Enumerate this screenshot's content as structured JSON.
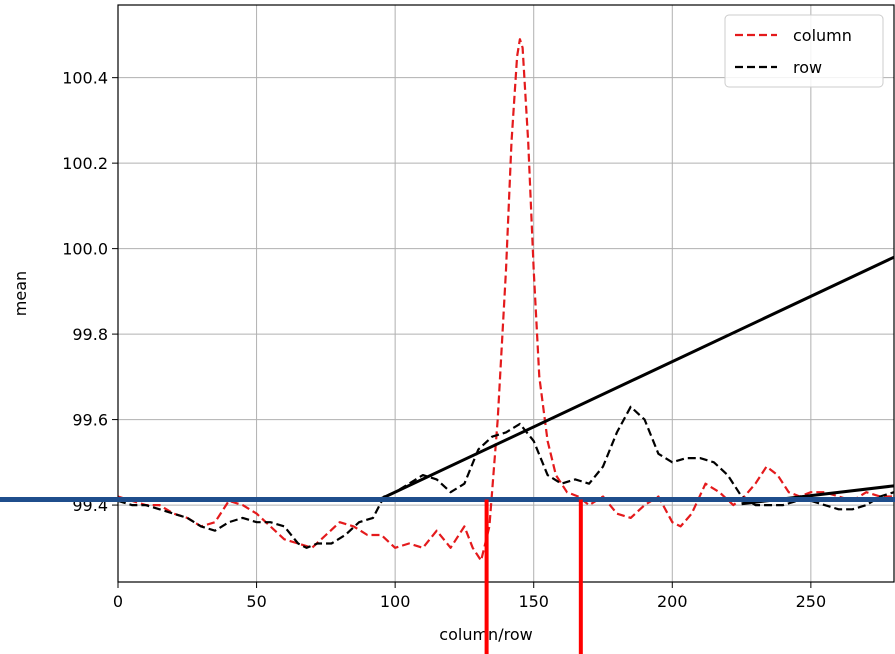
{
  "chart_data": {
    "type": "line",
    "xlabel": "column/row",
    "ylabel": "mean",
    "xlim": [
      0,
      280
    ],
    "ylim": [
      99.22,
      100.57
    ],
    "grid": true,
    "legend_position": "top-right",
    "x_ticks": [
      0,
      50,
      100,
      150,
      200,
      250
    ],
    "y_ticks": [
      99.4,
      99.6,
      99.8,
      100.0,
      100.2,
      100.4
    ],
    "x_tick_labels": [
      "0",
      "50",
      "100",
      "150",
      "200",
      "250"
    ],
    "y_tick_labels": [
      "99.4",
      "99.6",
      "99.8",
      "100.0",
      "100.2",
      "100.4"
    ],
    "series": [
      {
        "name": "column",
        "color": "#e41a1c",
        "style": "dashed",
        "points": [
          [
            0,
            99.42
          ],
          [
            5,
            99.41
          ],
          [
            10,
            99.4
          ],
          [
            15,
            99.4
          ],
          [
            20,
            99.38
          ],
          [
            25,
            99.37
          ],
          [
            30,
            99.35
          ],
          [
            35,
            99.36
          ],
          [
            40,
            99.41
          ],
          [
            45,
            99.4
          ],
          [
            50,
            99.38
          ],
          [
            55,
            99.35
          ],
          [
            60,
            99.32
          ],
          [
            65,
            99.31
          ],
          [
            70,
            99.3
          ],
          [
            75,
            99.33
          ],
          [
            80,
            99.36
          ],
          [
            85,
            99.35
          ],
          [
            90,
            99.33
          ],
          [
            95,
            99.33
          ],
          [
            100,
            99.3
          ],
          [
            105,
            99.31
          ],
          [
            110,
            99.3
          ],
          [
            115,
            99.34
          ],
          [
            120,
            99.3
          ],
          [
            125,
            99.35
          ],
          [
            128,
            99.3
          ],
          [
            131,
            99.27
          ],
          [
            134,
            99.35
          ],
          [
            137,
            99.6
          ],
          [
            140,
            99.95
          ],
          [
            142,
            100.25
          ],
          [
            144,
            100.45
          ],
          [
            145,
            100.49
          ],
          [
            146,
            100.47
          ],
          [
            148,
            100.25
          ],
          [
            150,
            99.95
          ],
          [
            152,
            99.7
          ],
          [
            155,
            99.55
          ],
          [
            158,
            99.47
          ],
          [
            162,
            99.43
          ],
          [
            166,
            99.42
          ],
          [
            170,
            99.4
          ],
          [
            175,
            99.42
          ],
          [
            180,
            99.38
          ],
          [
            185,
            99.37
          ],
          [
            190,
            99.4
          ],
          [
            195,
            99.42
          ],
          [
            200,
            99.36
          ],
          [
            203,
            99.35
          ],
          [
            207,
            99.38
          ],
          [
            212,
            99.45
          ],
          [
            217,
            99.43
          ],
          [
            222,
            99.4
          ],
          [
            226,
            99.42
          ],
          [
            230,
            99.45
          ],
          [
            234,
            99.49
          ],
          [
            238,
            99.47
          ],
          [
            242,
            99.43
          ],
          [
            246,
            99.42
          ],
          [
            250,
            99.43
          ],
          [
            255,
            99.43
          ],
          [
            260,
            99.42
          ],
          [
            265,
            99.41
          ],
          [
            270,
            99.43
          ],
          [
            275,
            99.42
          ],
          [
            280,
            99.42
          ]
        ]
      },
      {
        "name": "row",
        "color": "#000000",
        "style": "dashed",
        "points": [
          [
            0,
            99.41
          ],
          [
            5,
            99.4
          ],
          [
            10,
            99.4
          ],
          [
            15,
            99.39
          ],
          [
            20,
            99.38
          ],
          [
            25,
            99.37
          ],
          [
            30,
            99.35
          ],
          [
            35,
            99.34
          ],
          [
            40,
            99.36
          ],
          [
            45,
            99.37
          ],
          [
            50,
            99.36
          ],
          [
            55,
            99.36
          ],
          [
            60,
            99.35
          ],
          [
            65,
            99.31
          ],
          [
            68,
            99.3
          ],
          [
            72,
            99.31
          ],
          [
            77,
            99.31
          ],
          [
            82,
            99.33
          ],
          [
            87,
            99.36
          ],
          [
            92,
            99.37
          ],
          [
            96,
            99.42
          ],
          [
            100,
            99.43
          ],
          [
            105,
            99.45
          ],
          [
            110,
            99.47
          ],
          [
            115,
            99.46
          ],
          [
            120,
            99.43
          ],
          [
            125,
            99.45
          ],
          [
            130,
            99.53
          ],
          [
            135,
            99.56
          ],
          [
            140,
            99.57
          ],
          [
            145,
            99.59
          ],
          [
            150,
            99.55
          ],
          [
            155,
            99.47
          ],
          [
            160,
            99.45
          ],
          [
            165,
            99.46
          ],
          [
            170,
            99.45
          ],
          [
            175,
            99.49
          ],
          [
            180,
            99.57
          ],
          [
            185,
            99.63
          ],
          [
            190,
            99.6
          ],
          [
            195,
            99.52
          ],
          [
            200,
            99.5
          ],
          [
            205,
            99.51
          ],
          [
            210,
            99.51
          ],
          [
            215,
            99.5
          ],
          [
            220,
            99.47
          ],
          [
            225,
            99.42
          ],
          [
            230,
            99.4
          ],
          [
            235,
            99.4
          ],
          [
            240,
            99.4
          ],
          [
            245,
            99.41
          ],
          [
            250,
            99.41
          ],
          [
            255,
            99.4
          ],
          [
            260,
            99.39
          ],
          [
            265,
            99.39
          ],
          [
            270,
            99.4
          ],
          [
            275,
            99.42
          ],
          [
            280,
            99.43
          ]
        ]
      }
    ],
    "annotations": {
      "horizontal_line": {
        "y": 99.413,
        "color": "#1f4e8c"
      },
      "black_lines": [
        {
          "from": [
            95,
            99.415
          ],
          "to": [
            280,
            99.98
          ],
          "color": "#000000"
        },
        {
          "from": [
            225,
            99.403
          ],
          "to": [
            280,
            99.445
          ],
          "color": "#000000"
        }
      ],
      "red_vertical_lines": [
        {
          "x": 133,
          "color": "#ff0000"
        },
        {
          "x": 167,
          "color": "#ff0000"
        }
      ]
    }
  }
}
